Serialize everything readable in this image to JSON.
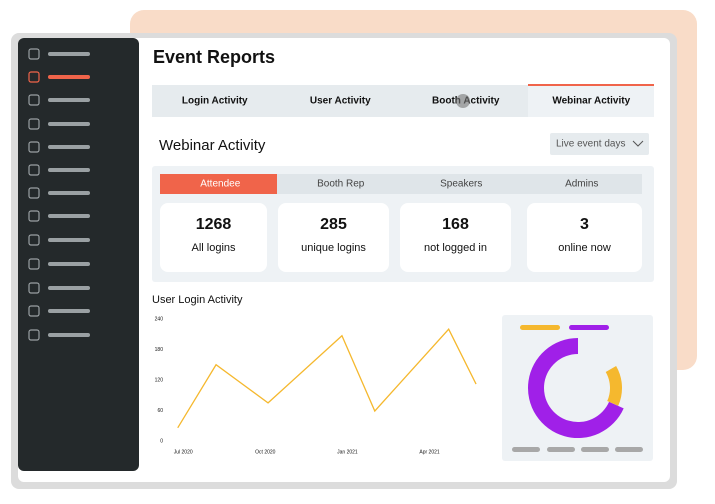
{
  "header": {
    "title": "Event Reports"
  },
  "tabs": [
    "Login Activity",
    "User Activity",
    "Booth Activity",
    "Webinar Activity"
  ],
  "section": {
    "title": "Webinar Activity",
    "dropdown": "Live event days"
  },
  "subtabs": [
    "Attendee",
    "Booth Rep",
    "Speakers",
    "Admins"
  ],
  "stats": [
    {
      "value": "1268",
      "label": "All logins"
    },
    {
      "value": "285",
      "label": "unique logins"
    },
    {
      "value": "168",
      "label": "not logged in"
    },
    {
      "value": "3",
      "label": "online now"
    }
  ],
  "chart_data": [
    {
      "type": "line",
      "title": "User Login Activity",
      "x": [
        -0.2,
        1.2,
        3.1,
        5.8,
        7,
        9.7,
        10.7
      ],
      "values": [
        26,
        150,
        75,
        207,
        59,
        220,
        112
      ],
      "color": "#f5b82e",
      "xlim": [
        -0.3,
        11.1
      ],
      "xticks": [
        {
          "value": 0,
          "label": "Jul 2020"
        },
        {
          "value": 3,
          "label": "Oct 2020"
        },
        {
          "value": 6,
          "label": "Jan 2021"
        },
        {
          "value": 9,
          "label": "Apr 2021"
        }
      ],
      "ylim": [
        0,
        240
      ],
      "yticks": [
        0,
        60,
        120,
        180,
        240
      ],
      "grid": true
    },
    {
      "type": "donut",
      "series": [
        {
          "color": "#f5b82e",
          "values": [
            18
          ]
        },
        {
          "color": "#a020e8",
          "values": [
            82
          ]
        }
      ]
    }
  ]
}
